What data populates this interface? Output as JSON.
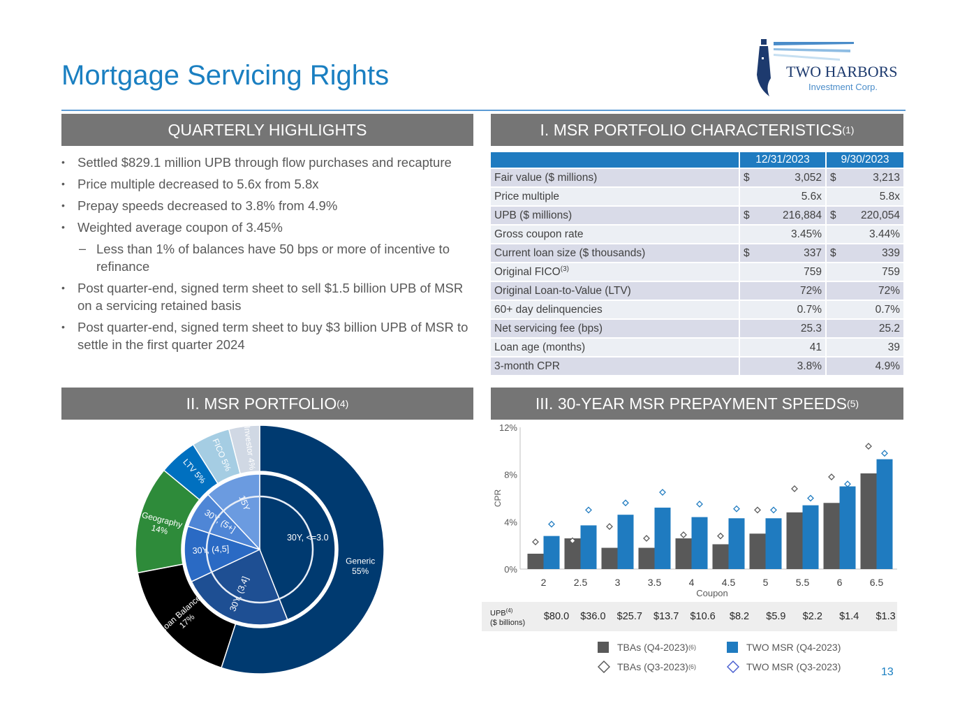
{
  "header": {
    "title": "Mortgage Servicing Rights",
    "logo_name": "TWO HARBORS",
    "logo_sub": "Investment Corp."
  },
  "highlights": {
    "heading": "QUARTERLY HIGHLIGHTS",
    "items": [
      {
        "marker": "•",
        "text": "Settled $829.1 million UPB through flow purchases and recapture"
      },
      {
        "marker": "•",
        "text": "Price multiple decreased to 5.6x from 5.8x"
      },
      {
        "marker": "•",
        "text": "Prepay speeds decreased to 3.8% from 4.9%"
      },
      {
        "marker": "•",
        "text": "Weighted average coupon of 3.45%"
      },
      {
        "marker": "–",
        "text": "Less than 1% of balances have 50 bps or more of incentive to refinance"
      },
      {
        "marker": "•",
        "text": "Post quarter-end, signed term sheet to sell $1.5 billion UPB of MSR on a servicing retained basis"
      },
      {
        "marker": "•",
        "text": "Post quarter-end, signed term sheet to buy $3 billion UPB of MSR to settle in the first quarter 2024"
      }
    ]
  },
  "characteristics": {
    "heading": "I. MSR PORTFOLIO CHARACTERISTICS",
    "heading_note": "(1)",
    "col1": "12/31/2023",
    "col2": "9/30/2023",
    "rows": [
      {
        "label": "Fair value ($ millions)",
        "note": "",
        "d1": "$",
        "v1": "3,052",
        "d2": "$",
        "v2": "3,213"
      },
      {
        "label": "Price multiple",
        "note": "",
        "d1": "",
        "v1": "5.6x",
        "d2": "",
        "v2": "5.8x"
      },
      {
        "label": "UPB ($ millions)",
        "note": "",
        "d1": "$",
        "v1": "216,884",
        "d2": "$",
        "v2": "220,054"
      },
      {
        "label": "Gross coupon rate",
        "note": "",
        "d1": "",
        "v1": "3.45%",
        "d2": "",
        "v2": "3.44%"
      },
      {
        "label": "Current loan size ($ thousands)",
        "note": "",
        "d1": "$",
        "v1": "337",
        "d2": "$",
        "v2": "339"
      },
      {
        "label": "Original FICO",
        "note": "(3)",
        "d1": "",
        "v1": "759",
        "d2": "",
        "v2": "759"
      },
      {
        "label": "Original Loan-to-Value (LTV)",
        "note": "",
        "d1": "",
        "v1": "72%",
        "d2": "",
        "v2": "72%"
      },
      {
        "label": "60+ day delinquencies",
        "note": "",
        "d1": "",
        "v1": "0.7%",
        "d2": "",
        "v2": "0.7%"
      },
      {
        "label": "Net servicing fee (bps)",
        "note": "",
        "d1": "",
        "v1": "25.3",
        "d2": "",
        "v2": "25.2"
      },
      {
        "label": "Loan age (months)",
        "note": "",
        "d1": "",
        "v1": "41",
        "d2": "",
        "v2": "39"
      },
      {
        "label": "3-month CPR",
        "note": "",
        "d1": "",
        "v1": "3.8%",
        "d2": "",
        "v2": "4.9%"
      }
    ]
  },
  "portfolio": {
    "heading": "II. MSR PORTFOLIO",
    "heading_note": "(4)"
  },
  "prepay": {
    "heading": "III. 30-YEAR MSR PREPAYMENT SPEEDS",
    "heading_note": "(5)",
    "upb_label_1": "UPB",
    "upb_label_note": "(4)",
    "upb_label_2": "($ billions)",
    "upb_values": [
      "$80.0",
      "$36.0",
      "$25.7",
      "$13.7",
      "$10.6",
      "$8.2",
      "$5.9",
      "$2.2",
      "$1.4",
      "$1.3"
    ],
    "legend": [
      {
        "label": "TBAs (Q4-2023)",
        "note": "(6)"
      },
      {
        "label": "TWO MSR (Q4-2023)",
        "note": ""
      },
      {
        "label": "TBAs (Q3-2023)",
        "note": "(6)"
      },
      {
        "label": "TWO MSR (Q3-2023)",
        "note": ""
      }
    ]
  },
  "page_number": "13",
  "colors": {
    "title_blue": "#1a7fc1",
    "header_gray": "#757575",
    "table_header_blue": "#1f7bc0",
    "tba_gray": "#595959",
    "msr_blue": "#1f7bc0",
    "navy": "#003a70"
  },
  "chart_data": [
    {
      "type": "pie",
      "title": "",
      "series": [
        {
          "name": "outer",
          "labels": [
            "Generic 55%",
            "Loan Balance 17%",
            "Geography 14%",
            "LTV 5%",
            "FICO 5%",
            "Investor 4%"
          ],
          "values": [
            55,
            17,
            14,
            5,
            5,
            4
          ],
          "colors": [
            "#003a70",
            "#000000",
            "#2e8b3a",
            "#0070c0",
            "#a5cde3",
            "#d0d8e4"
          ]
        },
        {
          "name": "inner",
          "labels": [
            "30Y, <=3.0",
            "30Y, (3,4]",
            "30Y, (4,5]",
            "30Y, (5+]",
            "15Y"
          ],
          "values": [
            44,
            24,
            12,
            8,
            12
          ],
          "colors": [
            "#003a70",
            "#1e4f93",
            "#2a6ac4",
            "#4f86d6",
            "#6b9be0"
          ]
        }
      ]
    },
    {
      "type": "bar",
      "title": "",
      "xlabel": "Coupon",
      "ylabel": "CPR",
      "categories": [
        "2",
        "2.5",
        "3",
        "3.5",
        "4",
        "4.5",
        "5",
        "5.5",
        "6",
        "6.5"
      ],
      "ylim": [
        0,
        12
      ],
      "yticks": [
        "0%",
        "4%",
        "8%",
        "12%"
      ],
      "series": [
        {
          "name": "TBAs (Q4-2023)",
          "kind": "bar",
          "color": "#595959",
          "values": [
            1.3,
            2.6,
            1.8,
            1.8,
            2.6,
            2.1,
            3.0,
            4.8,
            5.6,
            8.1
          ]
        },
        {
          "name": "TWO MSR (Q4-2023)",
          "kind": "bar",
          "color": "#1f7bc0",
          "values": [
            2.8,
            3.7,
            4.6,
            5.2,
            4.4,
            4.3,
            4.3,
            5.4,
            7.0,
            9.3
          ]
        },
        {
          "name": "TBAs (Q3-2023)",
          "kind": "marker",
          "color": "#595959",
          "values": [
            2.3,
            2.4,
            3.6,
            2.6,
            2.9,
            2.8,
            5.0,
            6.8,
            7.8,
            10.4
          ]
        },
        {
          "name": "TWO MSR (Q3-2023)",
          "kind": "marker",
          "color": "#1f7bc0",
          "values": [
            3.8,
            5.0,
            5.6,
            6.5,
            5.5,
            5.1,
            5.0,
            6.0,
            7.2,
            9.8
          ]
        }
      ],
      "grid": false,
      "legend": "bottom"
    }
  ]
}
